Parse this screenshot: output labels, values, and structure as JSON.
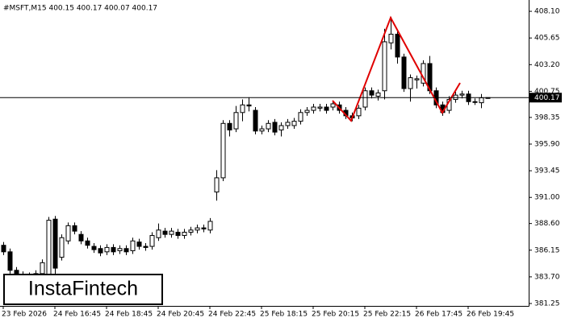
{
  "chart_data": {
    "type": "candlestick",
    "title": "#MSFT,M15 400.15 400.17 400.07 400.17",
    "categories": [
      "23 Feb 2026",
      null,
      null,
      null,
      null,
      null,
      null,
      null,
      "24 Feb 16:45",
      null,
      null,
      null,
      null,
      null,
      null,
      null,
      "24 Feb 18:45",
      null,
      null,
      null,
      null,
      null,
      null,
      null,
      "24 Feb 20:45",
      null,
      null,
      null,
      null,
      null,
      null,
      null,
      "24 Feb 22:45",
      null,
      null,
      null,
      null,
      null,
      null,
      null,
      "25 Feb 18:15",
      null,
      null,
      null,
      null,
      null,
      null,
      null,
      "25 Feb 20:15",
      null,
      null,
      null,
      null,
      null,
      null,
      null,
      "25 Feb 22:15",
      null,
      null,
      null,
      null,
      null,
      null,
      null,
      "26 Feb 17:45",
      null,
      null,
      null,
      null,
      null,
      null,
      null,
      "26 Feb 19:45",
      null,
      null,
      null
    ],
    "open": [
      386.6,
      386.0,
      384.3,
      383.9,
      383.7,
      383.8,
      384.0,
      383.9,
      389.0,
      385.5,
      387.0,
      388.4,
      387.6,
      387.0,
      386.5,
      386.3,
      386.0,
      386.4,
      386.1,
      386.3,
      386.1,
      386.9,
      386.5,
      386.5,
      387.3,
      387.9,
      387.6,
      387.8,
      387.5,
      387.8,
      388.0,
      388.2,
      388.0,
      391.5,
      392.8,
      397.8,
      397.3,
      398.8,
      399.5,
      399.0,
      397.1,
      397.3,
      397.9,
      397.2,
      397.6,
      397.6,
      398.0,
      398.8,
      399.0,
      399.2,
      399.3,
      399.3,
      399.5,
      399.0,
      398.5,
      398.5,
      399.3,
      400.8,
      400.3,
      400.8,
      405.2,
      406.0,
      403.9,
      401.0,
      401.8,
      401.5,
      403.3,
      400.8,
      399.5,
      399.0,
      400.0,
      400.4,
      400.5,
      399.8,
      399.7,
      400.15
    ],
    "high": [
      386.9,
      386.3,
      384.6,
      384.2,
      384.1,
      384.3,
      385.3,
      389.2,
      389.3,
      387.6,
      388.7,
      388.7,
      387.9,
      387.3,
      386.8,
      386.6,
      386.7,
      386.7,
      386.6,
      386.6,
      387.3,
      387.2,
      386.8,
      387.8,
      388.6,
      388.2,
      388.2,
      388.1,
      388.1,
      388.3,
      388.5,
      388.5,
      389.1,
      393.5,
      398.1,
      398.1,
      399.4,
      400.0,
      400.2,
      399.3,
      397.6,
      398.1,
      398.2,
      397.9,
      398.2,
      398.3,
      399.1,
      399.3,
      399.6,
      399.6,
      399.6,
      399.9,
      399.8,
      399.3,
      398.8,
      399.5,
      401.1,
      401.1,
      400.9,
      406.5,
      407.6,
      406.3,
      404.2,
      402.3,
      402.2,
      403.6,
      404.0,
      401.1,
      399.8,
      400.3,
      400.7,
      400.8,
      400.8,
      400.1,
      400.5,
      400.17
    ],
    "low": [
      385.7,
      384.0,
      383.7,
      383.4,
      383.4,
      383.5,
      383.7,
      383.6,
      383.5,
      385.2,
      386.7,
      387.6,
      386.7,
      386.3,
      385.9,
      385.6,
      385.7,
      385.7,
      385.8,
      385.7,
      385.8,
      386.2,
      386.1,
      386.2,
      387.0,
      387.3,
      387.3,
      387.2,
      387.2,
      387.5,
      387.7,
      387.8,
      387.7,
      390.7,
      392.5,
      396.6,
      397.0,
      398.0,
      398.9,
      396.8,
      396.8,
      397.0,
      396.7,
      396.6,
      397.3,
      397.3,
      397.7,
      398.5,
      398.7,
      398.9,
      398.7,
      399.0,
      398.7,
      398.2,
      398.0,
      398.2,
      399.0,
      400.1,
      399.9,
      400.0,
      404.6,
      403.3,
      400.7,
      399.8,
      401.0,
      401.2,
      400.5,
      399.2,
      398.5,
      398.7,
      399.7,
      400.1,
      399.5,
      399.5,
      399.2,
      400.07
    ],
    "close": [
      386.0,
      384.3,
      384.0,
      383.7,
      383.8,
      384.0,
      385.0,
      388.9,
      384.5,
      387.3,
      388.4,
      387.9,
      387.0,
      386.6,
      386.2,
      385.9,
      386.4,
      386.0,
      386.3,
      386.0,
      387.0,
      386.5,
      386.4,
      387.5,
      388.0,
      387.6,
      387.9,
      387.5,
      387.8,
      388.0,
      388.2,
      388.1,
      388.8,
      392.8,
      397.8,
      397.2,
      398.8,
      399.5,
      399.4,
      397.1,
      397.3,
      397.8,
      397.0,
      397.6,
      397.9,
      398.0,
      398.8,
      399.0,
      399.3,
      399.3,
      399.0,
      399.6,
      399.0,
      398.5,
      398.3,
      399.2,
      400.8,
      400.4,
      400.6,
      405.3,
      406.0,
      403.9,
      401.0,
      402.0,
      401.9,
      403.3,
      400.8,
      399.5,
      398.8,
      400.0,
      400.4,
      400.5,
      399.8,
      399.8,
      400.15,
      400.17
    ],
    "last_price": 400.17,
    "ylim": [
      381.03,
      409.14
    ],
    "yticks": [
      {
        "value": 408.1,
        "label": "408.10"
      },
      405.65,
      {
        "value": 403.2,
        "label": "403.20"
      },
      400.75,
      398.35,
      {
        "value": 395.9,
        "label": "395.90"
      },
      393.45,
      {
        "value": 391,
        "label": "391.00"
      },
      {
        "value": 388.6,
        "label": "388.60"
      },
      386.15,
      {
        "value": 383.7,
        "label": "383.70"
      },
      381.25
    ],
    "up_color": "#ffffff",
    "down_color": "#000000",
    "pattern_color": "#e00000"
  },
  "logo": "InstaFintech"
}
